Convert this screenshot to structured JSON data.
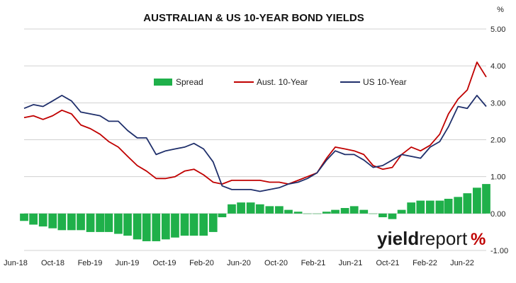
{
  "chart_data": {
    "type": "line",
    "title": "AUSTRALIAN & US 10-YEAR BOND YIELDS",
    "ylabel": "%",
    "xlabel": "",
    "ylim": [
      -1.0,
      5.0
    ],
    "y_ticks": [
      "5.00",
      "4.00",
      "3.00",
      "2.00",
      "1.00",
      "0.00",
      "-1.00"
    ],
    "x_ticks": [
      "Jun-18",
      "Oct-18",
      "Feb-19",
      "Jun-19",
      "Oct-19",
      "Feb-20",
      "Jun-20",
      "Oct-20",
      "Feb-21",
      "Jun-21",
      "Oct-21",
      "Feb-22",
      "Jun-22"
    ],
    "grid": "horizontal",
    "legend_position": "top-center",
    "series": [
      {
        "name": "Spread",
        "kind": "bar",
        "color": "#1fb04a",
        "x": [
          "2018-06",
          "2018-07",
          "2018-08",
          "2018-09",
          "2018-10",
          "2018-11",
          "2018-12",
          "2019-01",
          "2019-02",
          "2019-03",
          "2019-04",
          "2019-05",
          "2019-06",
          "2019-07",
          "2019-08",
          "2019-09",
          "2019-10",
          "2019-11",
          "2019-12",
          "2020-01",
          "2020-02",
          "2020-03",
          "2020-04",
          "2020-05",
          "2020-06",
          "2020-07",
          "2020-08",
          "2020-09",
          "2020-10",
          "2020-11",
          "2020-12",
          "2021-01",
          "2021-02",
          "2021-03",
          "2021-04",
          "2021-05",
          "2021-06",
          "2021-07",
          "2021-08",
          "2021-09",
          "2021-10",
          "2021-11",
          "2021-12",
          "2022-01",
          "2022-02",
          "2022-03",
          "2022-04",
          "2022-05",
          "2022-06",
          "2022-07"
        ],
        "values": [
          -0.2,
          -0.3,
          -0.35,
          -0.4,
          -0.45,
          -0.45,
          -0.45,
          -0.5,
          -0.5,
          -0.5,
          -0.55,
          -0.6,
          -0.7,
          -0.75,
          -0.75,
          -0.7,
          -0.65,
          -0.6,
          -0.6,
          -0.6,
          -0.5,
          -0.1,
          0.25,
          0.3,
          0.3,
          0.25,
          0.2,
          0.2,
          0.1,
          0.05,
          0.0,
          0.0,
          0.05,
          0.1,
          0.15,
          0.2,
          0.1,
          0.0,
          -0.1,
          -0.15,
          0.1,
          0.3,
          0.35,
          0.35,
          0.35,
          0.4,
          0.45,
          0.55,
          0.7,
          0.8
        ]
      },
      {
        "name": "Aust. 10-Year",
        "kind": "line",
        "color": "#c00000",
        "x": [
          "2018-06",
          "2018-07",
          "2018-08",
          "2018-09",
          "2018-10",
          "2018-11",
          "2018-12",
          "2019-01",
          "2019-02",
          "2019-03",
          "2019-04",
          "2019-05",
          "2019-06",
          "2019-07",
          "2019-08",
          "2019-09",
          "2019-10",
          "2019-11",
          "2019-12",
          "2020-01",
          "2020-02",
          "2020-03",
          "2020-04",
          "2020-05",
          "2020-06",
          "2020-07",
          "2020-08",
          "2020-09",
          "2020-10",
          "2020-11",
          "2020-12",
          "2021-01",
          "2021-02",
          "2021-03",
          "2021-04",
          "2021-05",
          "2021-06",
          "2021-07",
          "2021-08",
          "2021-09",
          "2021-10",
          "2021-11",
          "2021-12",
          "2022-01",
          "2022-02",
          "2022-03",
          "2022-04",
          "2022-05",
          "2022-06",
          "2022-07"
        ],
        "values": [
          2.6,
          2.65,
          2.55,
          2.65,
          2.8,
          2.7,
          2.4,
          2.3,
          2.15,
          1.95,
          1.8,
          1.55,
          1.3,
          1.15,
          0.95,
          0.95,
          1.0,
          1.15,
          1.2,
          1.05,
          0.85,
          0.8,
          0.9,
          0.9,
          0.9,
          0.9,
          0.85,
          0.85,
          0.8,
          0.9,
          1.0,
          1.1,
          1.5,
          1.8,
          1.75,
          1.7,
          1.6,
          1.3,
          1.2,
          1.25,
          1.6,
          1.8,
          1.7,
          1.85,
          2.15,
          2.7,
          3.1,
          3.35,
          4.1,
          3.7
        ]
      },
      {
        "name": "US 10-Year",
        "kind": "line",
        "color": "#1f2f6b",
        "x": [
          "2018-06",
          "2018-07",
          "2018-08",
          "2018-09",
          "2018-10",
          "2018-11",
          "2018-12",
          "2019-01",
          "2019-02",
          "2019-03",
          "2019-04",
          "2019-05",
          "2019-06",
          "2019-07",
          "2019-08",
          "2019-09",
          "2019-10",
          "2019-11",
          "2019-12",
          "2020-01",
          "2020-02",
          "2020-03",
          "2020-04",
          "2020-05",
          "2020-06",
          "2020-07",
          "2020-08",
          "2020-09",
          "2020-10",
          "2020-11",
          "2020-12",
          "2021-01",
          "2021-02",
          "2021-03",
          "2021-04",
          "2021-05",
          "2021-06",
          "2021-07",
          "2021-08",
          "2021-09",
          "2021-10",
          "2021-11",
          "2021-12",
          "2022-01",
          "2022-02",
          "2022-03",
          "2022-04",
          "2022-05",
          "2022-06",
          "2022-07"
        ],
        "values": [
          2.85,
          2.95,
          2.9,
          3.05,
          3.2,
          3.05,
          2.75,
          2.7,
          2.65,
          2.5,
          2.5,
          2.25,
          2.05,
          2.05,
          1.6,
          1.7,
          1.75,
          1.8,
          1.9,
          1.75,
          1.4,
          0.75,
          0.65,
          0.65,
          0.65,
          0.6,
          0.65,
          0.7,
          0.8,
          0.85,
          0.95,
          1.1,
          1.45,
          1.7,
          1.6,
          1.6,
          1.45,
          1.25,
          1.3,
          1.45,
          1.6,
          1.55,
          1.5,
          1.8,
          1.95,
          2.35,
          2.9,
          2.85,
          3.2,
          2.9
        ]
      }
    ],
    "logo": {
      "text_main": "yield",
      "text_accent": "report",
      "symbol": "%",
      "symbol_color": "#c00000"
    }
  }
}
